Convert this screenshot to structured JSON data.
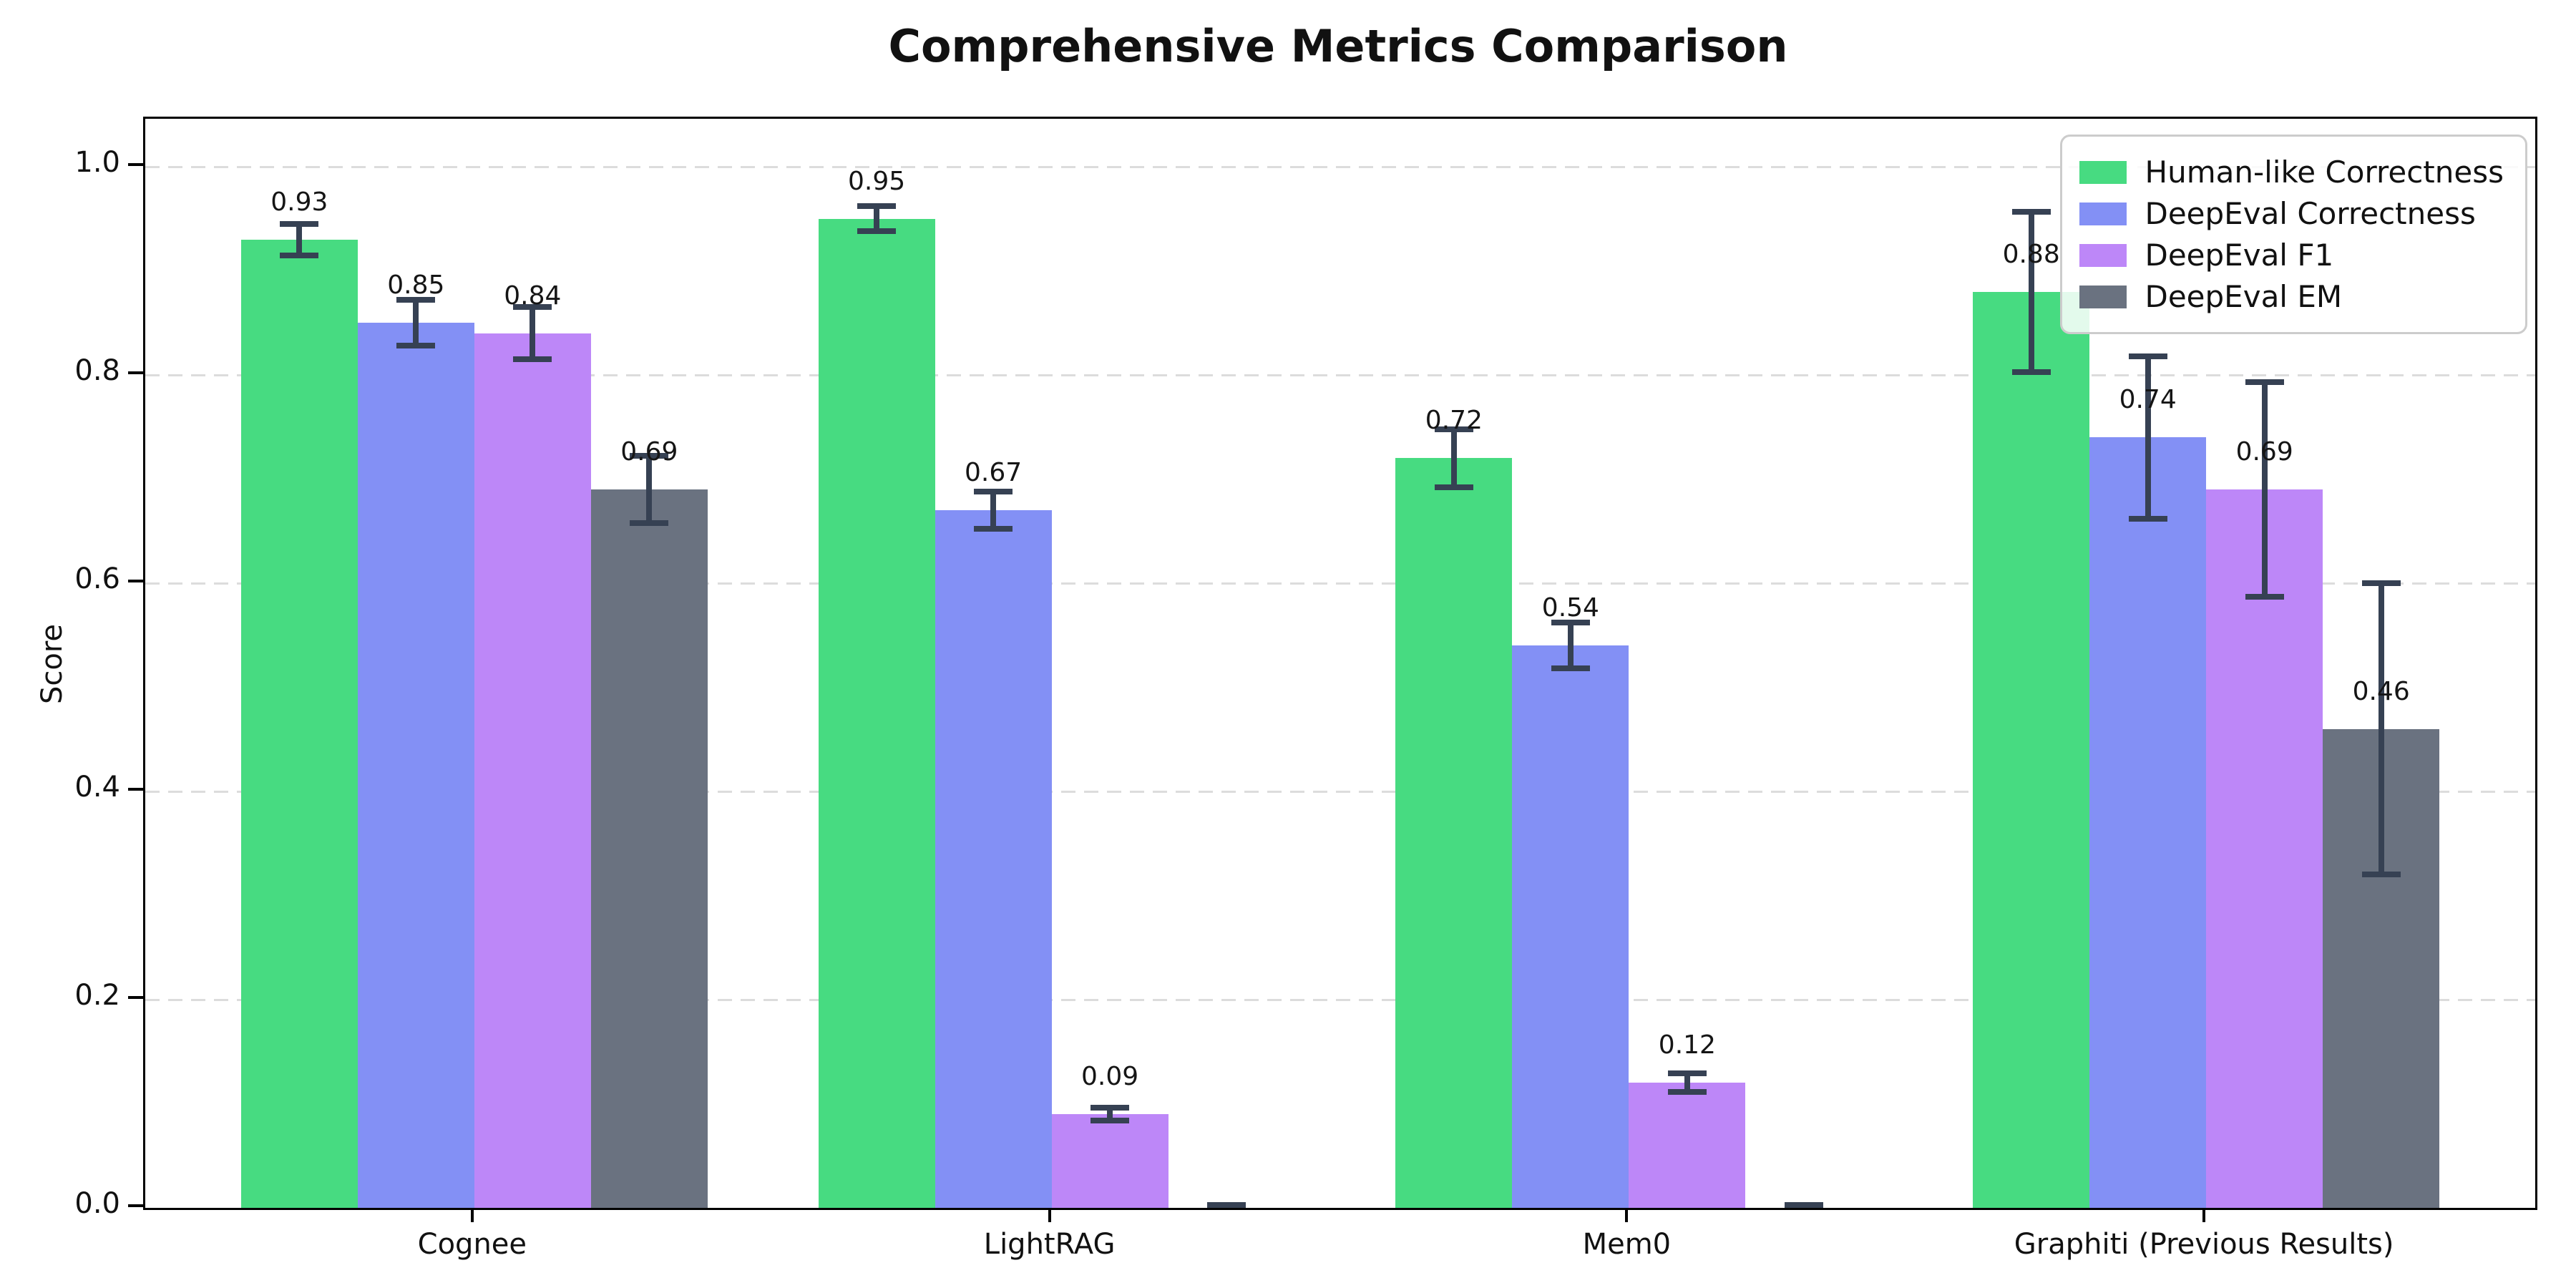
{
  "chart_data": {
    "type": "bar",
    "title": "Comprehensive Metrics Comparison",
    "ylabel": "Score",
    "xlabel": "",
    "categories": [
      "Cognee",
      "LightRAG",
      "Mem0",
      "Graphiti (Previous Results)"
    ],
    "series": [
      {
        "name": "Human-like Correctness",
        "color": "#47DB81",
        "values": [
          0.93,
          0.95,
          0.72,
          0.88
        ],
        "errors": [
          0.015,
          0.012,
          0.028,
          0.077
        ],
        "labels": [
          "0.93",
          "0.95",
          "0.72",
          "0.88"
        ]
      },
      {
        "name": "DeepEval Correctness",
        "color": "#8390F5",
        "values": [
          0.85,
          0.67,
          0.54,
          0.74
        ],
        "errors": [
          0.022,
          0.018,
          0.022,
          0.078
        ],
        "labels": [
          "0.85",
          "0.67",
          "0.54",
          "0.74"
        ]
      },
      {
        "name": "DeepEval F1",
        "color": "#BD87F8",
        "values": [
          0.84,
          0.09,
          0.12,
          0.69
        ],
        "errors": [
          0.025,
          0.006,
          0.009,
          0.103
        ],
        "labels": [
          "0.84",
          "0.09",
          "0.12",
          "0.69"
        ]
      },
      {
        "name": "DeepEval EM",
        "color": "#6A7280",
        "values": [
          0.69,
          0.0,
          0.0,
          0.46
        ],
        "errors": [
          0.032,
          0.003,
          0.003,
          0.14
        ],
        "labels": [
          "0.69",
          "",
          "",
          "0.46"
        ]
      }
    ],
    "yticks": [
      "0.0",
      "0.2",
      "0.4",
      "0.6",
      "0.8",
      "1.0"
    ],
    "ylim": [
      0,
      1.046
    ],
    "grid": "horizontal-dashed",
    "legend_position": "upper-right",
    "error_bar_color": "#364153",
    "frame": "full-box"
  }
}
